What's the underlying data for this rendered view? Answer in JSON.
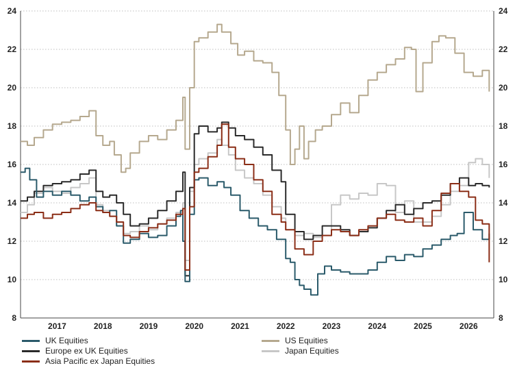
{
  "chart_data": {
    "type": "line",
    "title": "",
    "xlabel": "",
    "ylabel": "",
    "xlim": [
      2016.2,
      2026.55
    ],
    "ylim": [
      8,
      24
    ],
    "yticks": [
      8,
      10,
      12,
      14,
      16,
      18,
      20,
      22,
      24
    ],
    "y_tick_labels": [
      "8",
      "10",
      "12",
      "14",
      "16",
      "18",
      "20",
      "22",
      "24"
    ],
    "x_tick_labels": [
      "2017",
      "2018",
      "2019",
      "2020",
      "2021",
      "2022",
      "2023",
      "2024",
      "2025",
      "2026"
    ],
    "x_tick_values": [
      2017,
      2018,
      2019,
      2020,
      2021,
      2022,
      2023,
      2024,
      2025,
      2026
    ],
    "grid": "horizontal dotted",
    "legend_position": "bottom",
    "series": [
      {
        "name": "US Equities",
        "color": "#b5a88e",
        "x": [
          2016.2,
          2016.35,
          2016.5,
          2016.7,
          2016.9,
          2017.1,
          2017.3,
          2017.5,
          2017.7,
          2017.85,
          2018.0,
          2018.15,
          2018.25,
          2018.4,
          2018.5,
          2018.6,
          2018.8,
          2019.0,
          2019.2,
          2019.4,
          2019.6,
          2019.75,
          2019.8,
          2019.9,
          2020.0,
          2020.1,
          2020.3,
          2020.5,
          2020.6,
          2020.8,
          2020.95,
          2021.1,
          2021.3,
          2021.5,
          2021.7,
          2021.85,
          2022.0,
          2022.1,
          2022.2,
          2022.3,
          2022.4,
          2022.5,
          2022.65,
          2022.8,
          2023.0,
          2023.2,
          2023.4,
          2023.6,
          2023.8,
          2024.0,
          2024.2,
          2024.4,
          2024.6,
          2024.75,
          2024.85,
          2025.0,
          2025.2,
          2025.35,
          2025.5,
          2025.7,
          2025.9,
          2026.1,
          2026.3,
          2026.45
        ],
        "y": [
          17.2,
          17.0,
          17.4,
          17.8,
          18.1,
          18.2,
          18.3,
          18.5,
          18.8,
          17.5,
          17.0,
          17.2,
          16.5,
          15.6,
          15.8,
          16.6,
          17.2,
          17.5,
          17.3,
          17.8,
          18.3,
          19.5,
          16.8,
          20.0,
          22.4,
          22.6,
          22.9,
          23.3,
          22.9,
          22.3,
          21.7,
          21.9,
          21.4,
          21.3,
          20.8,
          19.6,
          17.8,
          16.0,
          16.8,
          18.0,
          16.3,
          17.2,
          17.8,
          18.0,
          18.6,
          19.2,
          18.7,
          19.6,
          20.4,
          20.8,
          21.2,
          21.5,
          22.1,
          22.0,
          19.8,
          21.3,
          22.4,
          22.7,
          22.6,
          21.8,
          20.8,
          20.6,
          20.9,
          19.8
        ]
      },
      {
        "name": "Japan Equities",
        "color": "#c7c7c7",
        "x": [
          2016.2,
          2016.35,
          2016.5,
          2016.7,
          2016.9,
          2017.1,
          2017.3,
          2017.5,
          2017.7,
          2017.85,
          2018.0,
          2018.15,
          2018.3,
          2018.45,
          2018.6,
          2018.8,
          2019.0,
          2019.2,
          2019.4,
          2019.6,
          2019.75,
          2019.8,
          2019.9,
          2020.0,
          2020.1,
          2020.3,
          2020.5,
          2020.6,
          2020.75,
          2020.9,
          2021.1,
          2021.3,
          2021.5,
          2021.7,
          2021.9,
          2022.0,
          2022.2,
          2022.4,
          2022.6,
          2022.8,
          2023.0,
          2023.2,
          2023.4,
          2023.6,
          2023.8,
          2024.0,
          2024.2,
          2024.4,
          2024.6,
          2024.8,
          2025.0,
          2025.2,
          2025.4,
          2025.6,
          2025.8,
          2026.0,
          2026.15,
          2026.3,
          2026.45
        ],
        "y": [
          13.5,
          13.9,
          14.5,
          14.8,
          14.6,
          14.5,
          14.8,
          15.0,
          15.3,
          13.9,
          13.6,
          13.3,
          12.8,
          12.4,
          12.5,
          12.8,
          12.6,
          12.9,
          13.2,
          13.5,
          14.0,
          11.0,
          14.6,
          16.0,
          16.3,
          16.6,
          17.3,
          17.0,
          16.5,
          15.7,
          15.3,
          15.0,
          14.4,
          13.8,
          13.2,
          12.6,
          12.3,
          12.4,
          12.2,
          12.3,
          13.9,
          14.4,
          14.2,
          14.5,
          14.4,
          15.0,
          14.9,
          13.5,
          14.1,
          13.0,
          13.0,
          13.3,
          13.9,
          14.6,
          14.9,
          16.1,
          16.3,
          16.0,
          15.3
        ]
      },
      {
        "name": "Europe ex UK Equities",
        "color": "#2a2a2a",
        "x": [
          2016.2,
          2016.35,
          2016.5,
          2016.7,
          2016.9,
          2017.1,
          2017.3,
          2017.5,
          2017.7,
          2017.85,
          2018.0,
          2018.15,
          2018.3,
          2018.45,
          2018.6,
          2018.8,
          2019.0,
          2019.2,
          2019.4,
          2019.6,
          2019.75,
          2019.8,
          2019.9,
          2020.0,
          2020.1,
          2020.3,
          2020.5,
          2020.6,
          2020.75,
          2020.9,
          2021.1,
          2021.3,
          2021.5,
          2021.7,
          2021.9,
          2022.0,
          2022.2,
          2022.4,
          2022.6,
          2022.8,
          2023.0,
          2023.2,
          2023.4,
          2023.6,
          2023.8,
          2024.0,
          2024.2,
          2024.4,
          2024.6,
          2024.8,
          2025.0,
          2025.2,
          2025.4,
          2025.6,
          2025.8,
          2026.0,
          2026.15,
          2026.3,
          2026.45
        ],
        "y": [
          14.1,
          14.3,
          14.6,
          14.9,
          15.0,
          15.1,
          15.2,
          15.5,
          15.7,
          14.6,
          14.3,
          14.4,
          14.0,
          13.4,
          12.8,
          12.9,
          13.2,
          13.6,
          14.1,
          14.6,
          15.6,
          10.2,
          14.8,
          17.6,
          18.0,
          17.7,
          17.9,
          18.2,
          17.9,
          17.5,
          17.3,
          16.9,
          16.5,
          15.7,
          15.1,
          13.4,
          12.5,
          12.1,
          12.3,
          12.8,
          12.8,
          12.6,
          12.3,
          12.5,
          12.7,
          13.2,
          13.6,
          13.9,
          13.4,
          13.7,
          14.0,
          14.1,
          14.4,
          15.0,
          15.3,
          14.9,
          15.0,
          14.9,
          14.8
        ]
      },
      {
        "name": "UK Equities",
        "color": "#2a5a6a",
        "x": [
          2016.2,
          2016.3,
          2016.4,
          2016.55,
          2016.7,
          2016.9,
          2017.1,
          2017.3,
          2017.5,
          2017.7,
          2017.85,
          2018.0,
          2018.15,
          2018.3,
          2018.45,
          2018.6,
          2018.8,
          2019.0,
          2019.2,
          2019.4,
          2019.6,
          2019.7,
          2019.75,
          2019.8,
          2019.9,
          2020.0,
          2020.1,
          2020.3,
          2020.5,
          2020.65,
          2020.8,
          2021.0,
          2021.2,
          2021.4,
          2021.6,
          2021.8,
          2022.0,
          2022.1,
          2022.2,
          2022.3,
          2022.4,
          2022.55,
          2022.7,
          2022.85,
          2023.0,
          2023.2,
          2023.4,
          2023.6,
          2023.8,
          2024.0,
          2024.2,
          2024.4,
          2024.6,
          2024.8,
          2025.0,
          2025.2,
          2025.4,
          2025.6,
          2025.75,
          2025.9,
          2026.1,
          2026.3,
          2026.45
        ],
        "y": [
          15.6,
          15.8,
          15.2,
          14.3,
          14.6,
          14.4,
          14.6,
          14.4,
          14.1,
          14.3,
          13.8,
          13.5,
          13.6,
          12.8,
          11.9,
          12.1,
          12.4,
          12.2,
          12.3,
          12.8,
          13.3,
          13.6,
          12.0,
          9.9,
          13.4,
          15.2,
          15.3,
          14.9,
          15.1,
          14.8,
          14.4,
          13.6,
          13.2,
          12.8,
          12.6,
          12.1,
          11.1,
          10.9,
          10.0,
          9.7,
          9.5,
          9.2,
          10.3,
          10.7,
          10.5,
          10.4,
          10.3,
          10.3,
          10.5,
          10.9,
          11.2,
          11.0,
          11.3,
          11.2,
          11.6,
          11.8,
          12.1,
          12.3,
          12.4,
          13.5,
          12.6,
          12.1,
          12.4
        ]
      },
      {
        "name": "Asia Pacific ex Japan Equities",
        "color": "#8b2e17",
        "x": [
          2016.2,
          2016.35,
          2016.5,
          2016.7,
          2016.9,
          2017.1,
          2017.3,
          2017.5,
          2017.7,
          2017.85,
          2018.0,
          2018.15,
          2018.3,
          2018.45,
          2018.6,
          2018.8,
          2019.0,
          2019.2,
          2019.4,
          2019.6,
          2019.75,
          2019.8,
          2019.9,
          2020.0,
          2020.1,
          2020.3,
          2020.5,
          2020.6,
          2020.75,
          2020.9,
          2021.1,
          2021.3,
          2021.5,
          2021.7,
          2021.9,
          2022.0,
          2022.2,
          2022.4,
          2022.6,
          2022.8,
          2023.0,
          2023.2,
          2023.4,
          2023.6,
          2023.8,
          2024.0,
          2024.2,
          2024.4,
          2024.6,
          2024.8,
          2025.0,
          2025.2,
          2025.4,
          2025.6,
          2025.8,
          2026.0,
          2026.15,
          2026.3,
          2026.45
        ],
        "y": [
          13.2,
          13.4,
          13.5,
          13.2,
          13.4,
          13.5,
          13.7,
          13.9,
          14.0,
          13.6,
          13.5,
          13.3,
          13.0,
          12.3,
          12.2,
          12.5,
          12.7,
          12.9,
          13.1,
          13.4,
          13.7,
          10.5,
          13.8,
          15.6,
          15.8,
          16.4,
          17.0,
          18.1,
          16.9,
          16.3,
          16.0,
          15.2,
          14.6,
          13.4,
          13.0,
          12.6,
          11.6,
          11.3,
          12.0,
          12.3,
          12.6,
          12.5,
          12.3,
          12.6,
          12.8,
          13.2,
          13.4,
          13.1,
          13.0,
          13.2,
          12.8,
          13.6,
          14.5,
          15.0,
          14.6,
          14.3,
          13.1,
          12.9,
          10.9
        ]
      }
    ]
  }
}
